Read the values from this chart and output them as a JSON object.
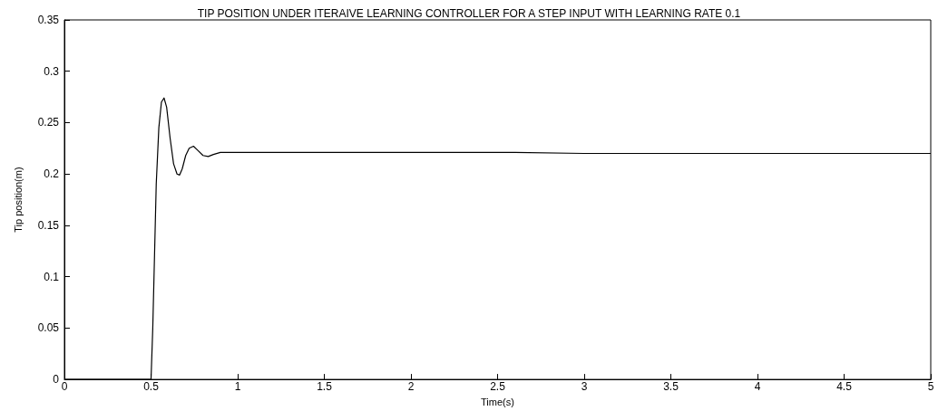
{
  "chart_data": {
    "type": "line",
    "title": "TIP POSITION UNDER ITERAIVE LEARNING CONTROLLER FOR A STEP INPUT WITH LEARNING RATE 0.1",
    "xlabel": "Time(s)",
    "ylabel": "Tip position(m)",
    "series": [
      {
        "color": "#000000",
        "x": [
          0,
          0.5,
          0.51,
          0.52,
          0.53,
          0.545,
          0.56,
          0.575,
          0.59,
          0.61,
          0.63,
          0.65,
          0.665,
          0.68,
          0.7,
          0.72,
          0.745,
          0.77,
          0.8,
          0.83,
          0.86,
          0.9,
          0.95,
          1.0,
          1.5,
          2.0,
          2.6,
          3.0,
          4.0,
          5.0
        ],
        "values": [
          0,
          0,
          0.05,
          0.12,
          0.19,
          0.245,
          0.27,
          0.274,
          0.265,
          0.235,
          0.21,
          0.2,
          0.199,
          0.205,
          0.218,
          0.225,
          0.227,
          0.223,
          0.218,
          0.217,
          0.219,
          0.221,
          0.221,
          0.221,
          0.221,
          0.221,
          0.221,
          0.22,
          0.22,
          0.22
        ]
      }
    ],
    "xlim": [
      0,
      5
    ],
    "xticks": [
      0,
      0.5,
      1,
      1.5,
      2,
      2.5,
      3,
      3.5,
      4,
      4.5,
      5
    ],
    "ylim": [
      0,
      0.35
    ],
    "yticks": [
      0,
      0.05,
      0.1,
      0.15,
      0.2,
      0.25,
      0.3,
      0.35
    ],
    "grid": false,
    "marker": "none",
    "line_style": "solid"
  }
}
